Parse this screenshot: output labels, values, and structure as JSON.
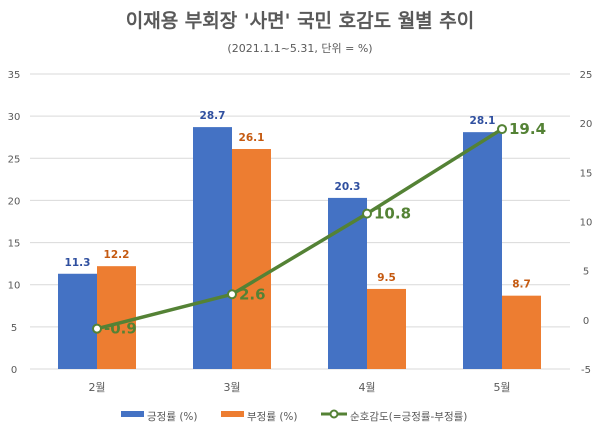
{
  "chart_data": {
    "type": "bar+line",
    "title": "이재용 부회장 '사면' 국민 호감도 월별 추이",
    "subtitle": "(2021.1.1~5.31, 단위 = %)",
    "categories": [
      "2월",
      "3월",
      "4월",
      "5월"
    ],
    "series": [
      {
        "name": "긍정률 (%)",
        "type": "bar",
        "axis": "left",
        "color": "#4472C4",
        "label_color": "#2F4F9F",
        "values": [
          11.3,
          28.7,
          20.3,
          28.1
        ]
      },
      {
        "name": "부정률 (%)",
        "type": "bar",
        "axis": "left",
        "color": "#ED7D31",
        "label_color": "#C55A11",
        "values": [
          12.2,
          26.1,
          9.5,
          8.7
        ]
      },
      {
        "name": "순호감도(=긍정률-부정률)",
        "type": "line",
        "axis": "right",
        "color": "#548235",
        "label_color": "#548235",
        "values": [
          -0.9,
          2.6,
          10.8,
          19.4
        ]
      }
    ],
    "left_axis": {
      "min": 0,
      "max": 35,
      "step": 5,
      "ticks": [
        "0",
        "5",
        "10",
        "15",
        "20",
        "25",
        "30",
        "35"
      ]
    },
    "right_axis": {
      "min": -5,
      "max": 25,
      "step": 5,
      "ticks": [
        "-5",
        "0",
        "5",
        "10",
        "15",
        "20",
        "25"
      ]
    },
    "grid": true,
    "legend": "bottom"
  }
}
